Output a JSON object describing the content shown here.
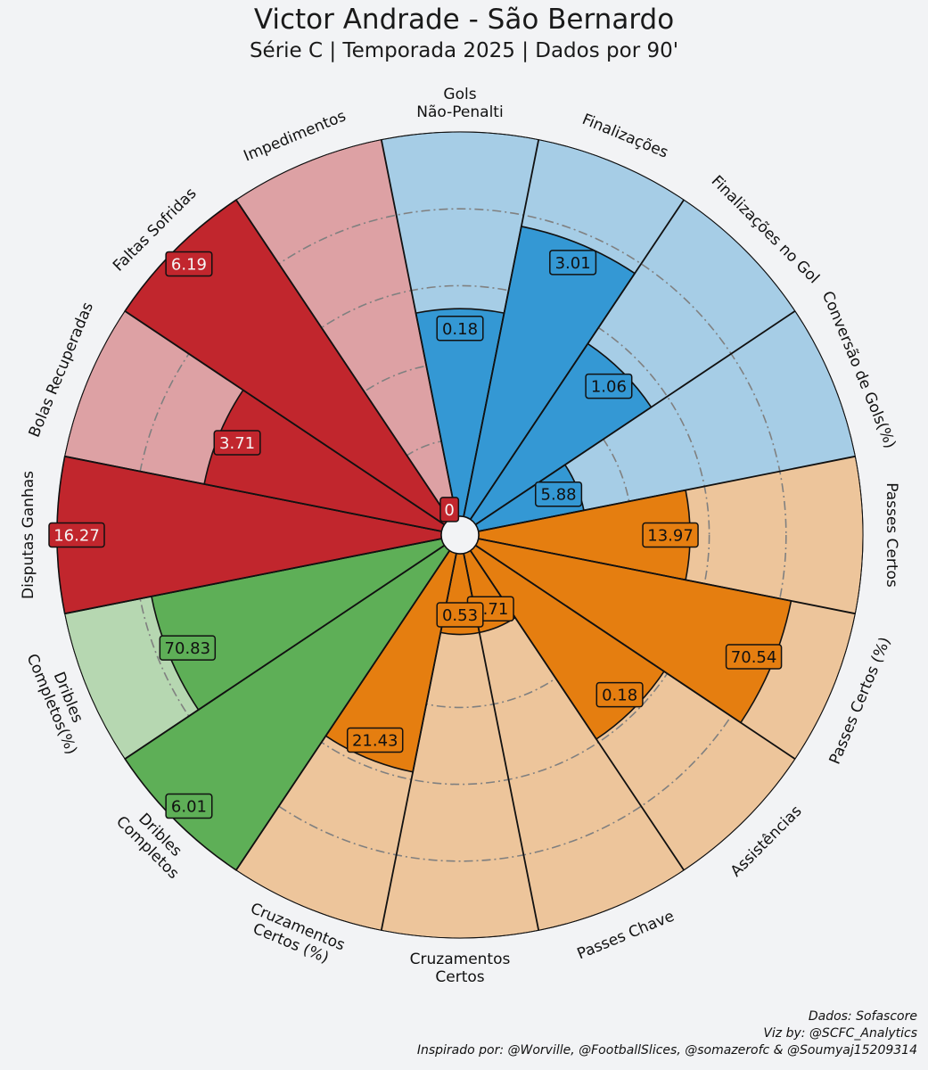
{
  "header": {
    "title": "Victor Andrade - São Bernardo",
    "subtitle": "Série C | Temporada 2025 | Dados por 90'"
  },
  "credits": {
    "source": "Dados: Sofascore",
    "viz": "Viz by: @SCFC_Analytics",
    "inspired": "Inspirado por: @Worville, @FootballSlices, @somazerofc & @Soumyaj15209314"
  },
  "colors": {
    "attack": "#3498d4",
    "attack_bg": "#a6cde6",
    "passing": "#e57e10",
    "passing_bg": "#edc59b",
    "dribble": "#5eaf57",
    "dribble_bg": "#b6d7b1",
    "defense": "#c1262d",
    "defense_bg": "#dda1a4"
  },
  "chart_data": {
    "type": "pizza",
    "title": "Victor Andrade - São Bernardo",
    "subtitle": "Série C | Temporada 2025 | Dados por 90'",
    "value_scale": "percentile 0-100",
    "slices": [
      {
        "label": "Gols\nNão-Penalti",
        "value": 0.18,
        "percentile": 54,
        "group": "attack"
      },
      {
        "label": "Finalizações",
        "value": 3.01,
        "percentile": 77,
        "group": "attack"
      },
      {
        "label": "Finalizações no Gol",
        "value": 1.06,
        "percentile": 55,
        "group": "attack"
      },
      {
        "label": "Conversão de Gols(%)",
        "value": 5.88,
        "percentile": 28,
        "group": "attack"
      },
      {
        "label": "Passes Certos",
        "value": 13.97,
        "percentile": 55,
        "group": "passing"
      },
      {
        "label": "Passes Certos (%)",
        "value": 70.54,
        "percentile": 83,
        "group": "passing"
      },
      {
        "label": "Assistências",
        "value": 0.18,
        "percentile": 59,
        "group": "passing"
      },
      {
        "label": "Passes Chave",
        "value": 0.71,
        "percentile": 21,
        "group": "passing"
      },
      {
        "label": "Cruzamentos\nCertos",
        "value": 0.53,
        "percentile": 21,
        "group": "passing"
      },
      {
        "label": "Cruzamentos\nCertos (%)",
        "value": 21.43,
        "percentile": 58,
        "group": "passing"
      },
      {
        "label": "Dribles\nCompletos",
        "value": 6.01,
        "percentile": 100,
        "group": "dribble"
      },
      {
        "label": "Dribles\nCompletos(%)",
        "value": 70.83,
        "percentile": 77,
        "group": "dribble"
      },
      {
        "label": "Disputas Ganhas",
        "value": 16.27,
        "percentile": 100,
        "group": "defense"
      },
      {
        "label": "Bolas Recuperadas",
        "value": 3.71,
        "percentile": 63,
        "group": "defense"
      },
      {
        "label": "Faltas Sofridas",
        "value": 6.19,
        "percentile": 100,
        "group": "defense"
      },
      {
        "label": "Impedimentos",
        "value": 0.0,
        "percentile": 0,
        "group": "defense"
      }
    ]
  }
}
